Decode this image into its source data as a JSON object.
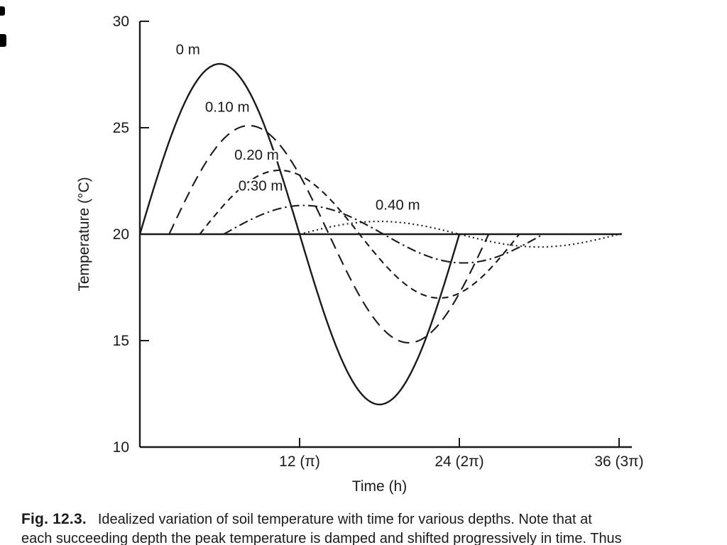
{
  "page": {
    "background": "#ffffff",
    "ink_color": "#1a1a1a"
  },
  "caption": {
    "label": "Fig. 12.3.",
    "line1": "Idealized variation of soil temperature with time for various depths. Note that at",
    "line2": "each succeeding depth the peak temperature is damped and shifted progressively in time. Thus"
  },
  "chart_data": {
    "type": "line",
    "title": "",
    "xlabel": "Time (h)",
    "ylabel": "Temperature (°C)",
    "xlim": [
      0,
      36.8
    ],
    "ylim": [
      10,
      30
    ],
    "grid": false,
    "legend": "inline curve labels",
    "mean_temperature_c": 20,
    "mean_line_end_h": 36.2,
    "period_h": 24,
    "y_ticks": [
      {
        "value": 30,
        "label": "30"
      },
      {
        "value": 25,
        "label": "25"
      },
      {
        "value": 20,
        "label": "20"
      },
      {
        "value": 15,
        "label": "15"
      },
      {
        "value": 10,
        "label": "10"
      }
    ],
    "x_ticks": [
      {
        "value": 12,
        "label": "12 (π)"
      },
      {
        "value": 24,
        "label": "24 (2π)"
      },
      {
        "value": 36,
        "label": "36 (3π)"
      }
    ],
    "series": [
      {
        "name": "0 m",
        "depth_m": 0.0,
        "amplitude_c": 8.0,
        "peak_temp_c": 28.0,
        "min_temp_c": 12.0,
        "peak_time_h": 6.0,
        "start_h": 0.0,
        "end_h": 24.0,
        "style": "solid",
        "label_pos": {
          "t": 2.7,
          "T": 28.45
        }
      },
      {
        "name": "0.10 m",
        "depth_m": 0.1,
        "amplitude_c": 5.1,
        "peak_temp_c": 25.1,
        "min_temp_c": 14.9,
        "peak_time_h": 8.2,
        "start_h": 2.2,
        "end_h": 26.2,
        "style": "long-dash",
        "label_pos": {
          "t": 4.9,
          "T": 25.75
        }
      },
      {
        "name": "0.20 m",
        "depth_m": 0.2,
        "amplitude_c": 3.0,
        "peak_temp_c": 23.0,
        "min_temp_c": 17.0,
        "peak_time_h": 10.5,
        "start_h": 4.5,
        "end_h": 28.5,
        "style": "dash",
        "label_pos": {
          "t": 7.1,
          "T": 23.5
        }
      },
      {
        "name": "0.30 m",
        "depth_m": 0.3,
        "amplitude_c": 1.35,
        "peak_temp_c": 21.4,
        "min_temp_c": 18.7,
        "peak_time_h": 12.3,
        "start_h": 6.3,
        "end_h": 30.3,
        "style": "dash-dot",
        "label_pos": {
          "t": 7.4,
          "T": 22.05
        }
      },
      {
        "name": "0.40 m",
        "depth_m": 0.4,
        "amplitude_c": 0.6,
        "peak_temp_c": 20.6,
        "min_temp_c": 19.4,
        "peak_time_h": 18.0,
        "start_h": 12.0,
        "end_h": 36.3,
        "style": "dotted",
        "label_pos": {
          "t": 17.7,
          "T": 21.15
        }
      }
    ]
  }
}
